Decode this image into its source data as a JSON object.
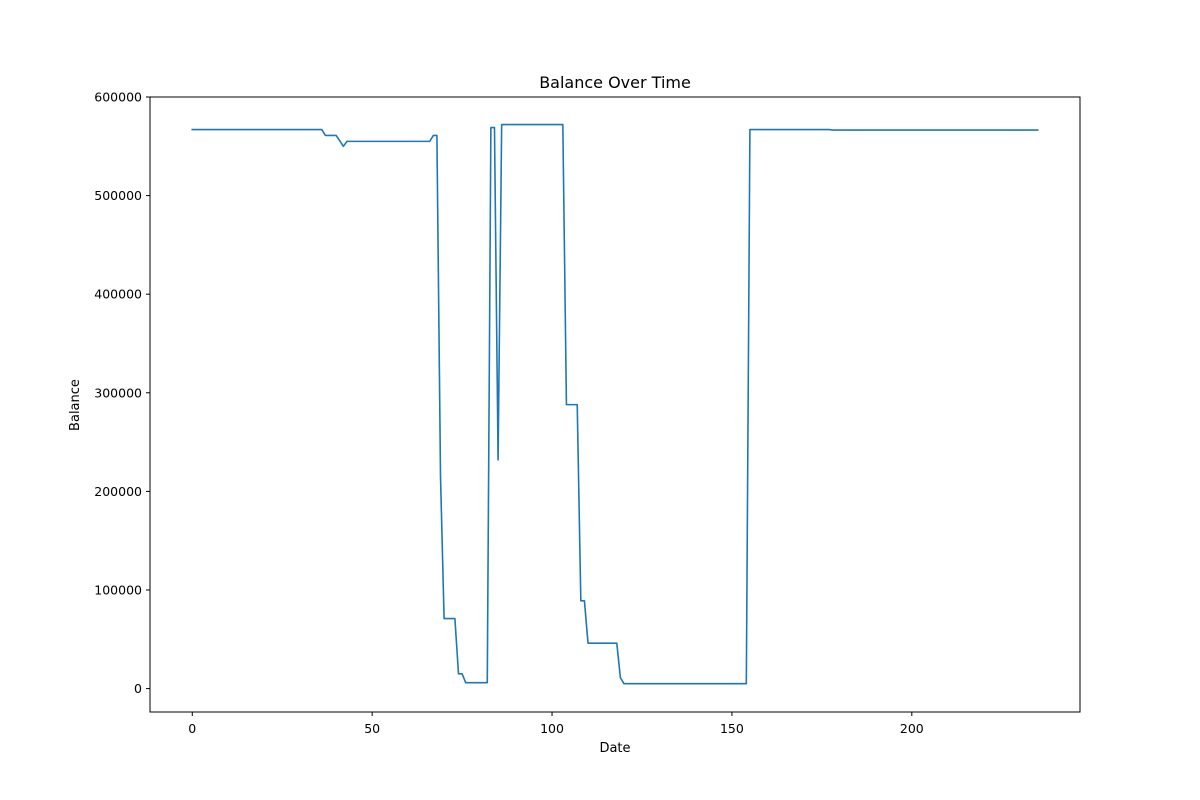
{
  "chart_data": {
    "type": "line",
    "title": "Balance Over Time",
    "xlabel": "Date",
    "ylabel": "Balance",
    "xlim": [
      -11.75,
      246.75
    ],
    "ylim": [
      -23750,
      600000
    ],
    "xticks": [
      0,
      50,
      100,
      150,
      200
    ],
    "yticks": [
      0,
      100000,
      200000,
      300000,
      400000,
      500000,
      600000
    ],
    "grid": false,
    "legend": "none",
    "series": [
      {
        "color": "#1f77b4",
        "x": [
          0,
          36,
          37,
          40,
          42,
          43,
          50,
          60,
          66,
          67,
          68,
          69,
          70,
          73,
          74,
          75,
          76,
          77,
          80,
          82,
          83,
          84,
          85,
          86,
          90,
          100,
          103,
          104,
          105,
          106,
          107,
          108,
          109,
          110,
          111,
          115,
          118,
          119,
          120,
          130,
          150,
          154,
          155,
          160,
          177,
          178,
          190,
          200,
          235
        ],
        "y": [
          567000,
          567000,
          561000,
          561000,
          550000,
          555000,
          555000,
          555000,
          555000,
          561000,
          561000,
          215000,
          71000,
          71000,
          15000,
          15000,
          6000,
          6000,
          6000,
          6000,
          569000,
          569000,
          232000,
          572000,
          572000,
          572000,
          572000,
          288000,
          288000,
          288000,
          288000,
          89000,
          89000,
          46000,
          46000,
          46000,
          46000,
          11000,
          5000,
          5000,
          5000,
          5000,
          567000,
          567000,
          567000,
          566500,
          566500,
          566500,
          566500
        ]
      }
    ]
  }
}
